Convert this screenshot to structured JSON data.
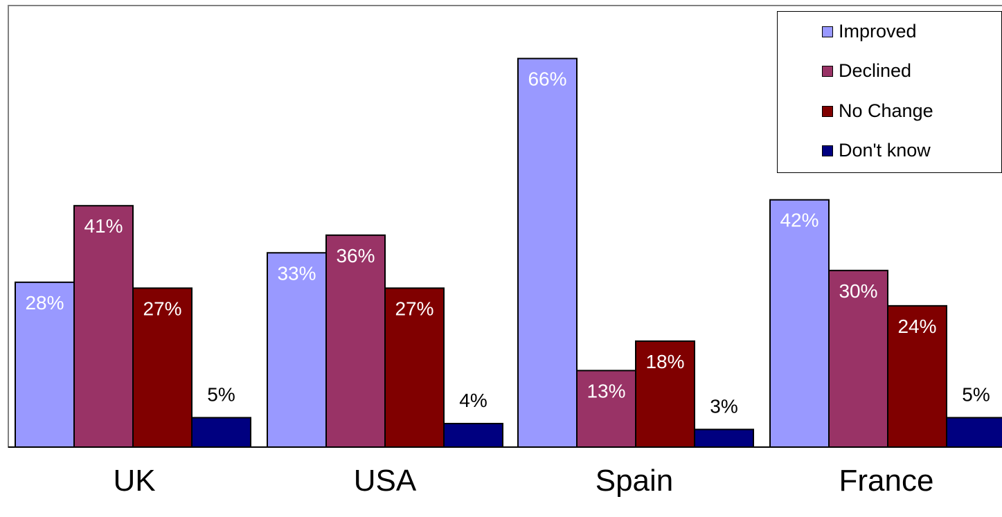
{
  "chart_data": {
    "type": "bar",
    "categories": [
      "UK",
      "USA",
      "Spain",
      "France"
    ],
    "series": [
      {
        "name": "Improved",
        "color": "#9999FF",
        "values": [
          28,
          33,
          66,
          42
        ],
        "labels": [
          "28%",
          "33%",
          "66%",
          "42%"
        ]
      },
      {
        "name": "Declined",
        "color": "#993366",
        "values": [
          41,
          36,
          13,
          30
        ],
        "labels": [
          "41%",
          "36%",
          "13%",
          "30%"
        ]
      },
      {
        "name": "No Change",
        "color": "#800000",
        "values": [
          27,
          27,
          18,
          24
        ],
        "labels": [
          "27%",
          "27%",
          "18%",
          "24%"
        ]
      },
      {
        "name": "Don't know",
        "color": "#000080",
        "values": [
          5,
          4,
          3,
          5
        ],
        "labels": [
          "5%",
          "4%",
          "3%",
          "5%"
        ]
      }
    ],
    "ylim": [
      0,
      75
    ],
    "grid": false,
    "legend_position": "top-right",
    "title": "",
    "xlabel": "",
    "ylabel": ""
  }
}
